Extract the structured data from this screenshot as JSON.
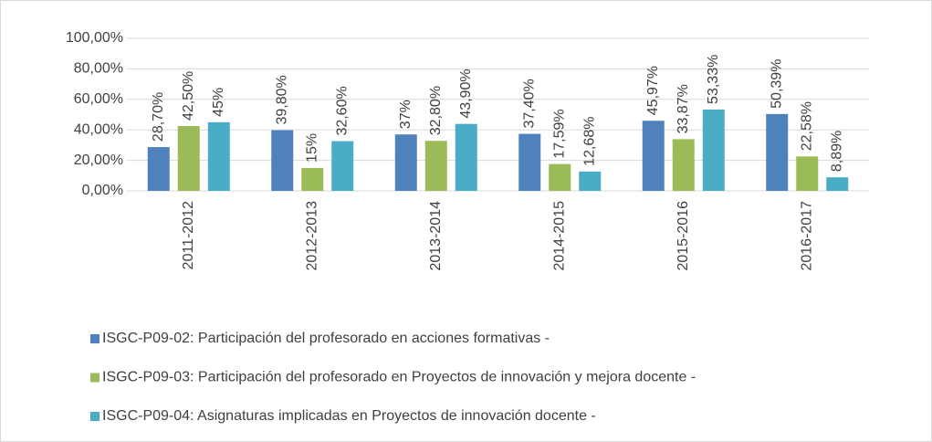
{
  "chart_data": {
    "type": "bar",
    "categories": [
      "2011-2012",
      "2012-2013",
      "2013-2014",
      "2014-2015",
      "2015-2016",
      "2016-2017"
    ],
    "series": [
      {
        "name": "ISGC-P09-02: Participación del profesorado en acciones formativas  -",
        "color": "#4f81bd",
        "values": [
          28.7,
          39.8,
          37,
          37.4,
          45.97,
          50.39
        ],
        "value_labels": [
          "28,70%",
          "39,80%",
          "37%",
          "37,40%",
          "45,97%",
          "50,39%"
        ]
      },
      {
        "name": "ISGC-P09-03: Participación del profesorado en Proyectos de innovación y mejora docente  -",
        "color": "#9bbb59",
        "values": [
          42.5,
          15,
          32.8,
          17.59,
          33.87,
          22.58
        ],
        "value_labels": [
          "42,50%",
          "15%",
          "32,80%",
          "17,59%",
          "33,87%",
          "22,58%"
        ]
      },
      {
        "name": "ISGC-P09-04: Asignaturas implicadas en Proyectos de innovación docente  -",
        "color": "#4bacc6",
        "values": [
          45,
          32.6,
          43.9,
          12.68,
          53.33,
          8.89
        ],
        "value_labels": [
          "45%",
          "32,60%",
          "43,90%",
          "12,68%",
          "53,33%",
          "8,89%"
        ]
      }
    ],
    "ylim": [
      0,
      100
    ],
    "yticks": [
      {
        "value": 0,
        "label": "0,00%"
      },
      {
        "value": 20,
        "label": "20,00%"
      },
      {
        "value": 40,
        "label": "40,00%"
      },
      {
        "value": 60,
        "label": "60,00%"
      },
      {
        "value": 80,
        "label": "80,00%"
      },
      {
        "value": 100,
        "label": "100,00%"
      }
    ],
    "grid": true
  }
}
